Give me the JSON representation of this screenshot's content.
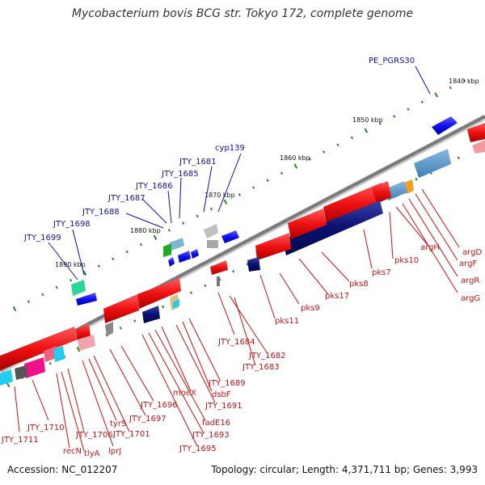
{
  "title": "Mycobacterium bovis BCG str. Tokyo 172, complete genome",
  "footer": {
    "accession": "Accession: NC_012207",
    "summary": "Topology: circular; Length: 4,371,711 bp; Genes: 3,993"
  },
  "scale_labels": [
    "1840 kbp",
    "1850 kbp",
    "1860 kbp",
    "1870 kbp",
    "1880 kbp",
    "1890 kbp"
  ],
  "blue_labels": [
    "PE_PGRS30",
    "cyp139",
    "JTY_1681",
    "JTY_1685",
    "JTY_1686",
    "JTY_1687",
    "JTY_1688",
    "JTY_1698",
    "JTY_1699"
  ],
  "red_labels": [
    "argD",
    "argF",
    "argR",
    "argG",
    "argH",
    "pks10",
    "pks7",
    "pks8",
    "pks17",
    "pks9",
    "pks11",
    "JTY_1684",
    "JTY_1682",
    "JTY_1683",
    "JTY_1689",
    "dsbF",
    "JTY_1691",
    "moeX",
    "fadE16",
    "JTY_1693",
    "JTY_1695",
    "JTY_1696",
    "JTY_1697",
    "JTY_1701",
    "tyrS",
    "lprJ",
    "tlyA",
    "recN",
    "JTY_1706",
    "JTY_1710",
    "JTY_1711"
  ],
  "colors": {
    "backbone": "#7a7a7a",
    "plus_feature": "#ee1111",
    "minus_feature": "#1111ee",
    "dark_feature": "#0a1070",
    "tick": "#1f8a1f",
    "blue_label": "#1010b0",
    "red_label": "#d01010"
  }
}
